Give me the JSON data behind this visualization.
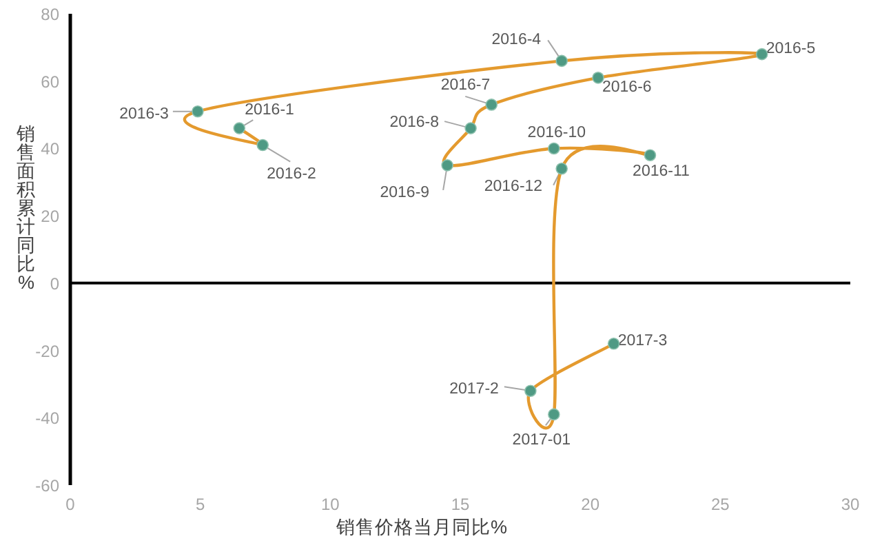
{
  "chart_data": {
    "type": "line",
    "xlabel": "销售价格当月同比%",
    "ylabel": "销售面积累计同比%",
    "xlim": [
      0,
      30
    ],
    "xticks": [
      0,
      5,
      10,
      15,
      20,
      25,
      30
    ],
    "ylim": [
      -60,
      80
    ],
    "yticks": [
      -60,
      -40,
      -20,
      0,
      20,
      40,
      60,
      80
    ],
    "marker": "circle",
    "line_style": "solid",
    "series": [
      {
        "color": "#e49a2e",
        "colors": [
          "#4f9a84",
          "#4f9a84",
          "#4f9a84",
          "#4f9a84",
          "#4f9a84",
          "#4f9a84",
          "#4f9a84",
          "#4f9a84",
          "#4f9a84",
          "#4f9a84",
          "#4f9a84",
          "#4f9a84",
          "#4f9a84",
          "#4f9a84",
          "#4f9a84"
        ],
        "x": [
          6.5,
          7.4,
          4.9,
          18.9,
          26.6,
          20.3,
          16.2,
          15.4,
          14.5,
          18.6,
          22.3,
          18.9,
          18.6,
          17.7,
          20.9
        ],
        "values": [
          46,
          41,
          51,
          66,
          68,
          61,
          53,
          46,
          35,
          40,
          38,
          34,
          -39,
          -32,
          -18
        ]
      }
    ],
    "annotations": [
      {
        "text": "2016-1",
        "x": 6.5,
        "y": 46
      },
      {
        "text": "2016-2",
        "x": 7.4,
        "y": 41
      },
      {
        "text": "2016-3",
        "x": 4.9,
        "y": 51
      },
      {
        "text": "2016-4",
        "x": 18.9,
        "y": 66
      },
      {
        "text": "2016-5",
        "x": 26.6,
        "y": 68
      },
      {
        "text": "2016-6",
        "x": 20.3,
        "y": 61
      },
      {
        "text": "2016-7",
        "x": 16.2,
        "y": 53
      },
      {
        "text": "2016-8",
        "x": 15.4,
        "y": 46
      },
      {
        "text": "2016-9",
        "x": 14.5,
        "y": 35
      },
      {
        "text": "2016-10",
        "x": 18.6,
        "y": 40
      },
      {
        "text": "2016-11",
        "x": 22.3,
        "y": 38
      },
      {
        "text": "2016-12",
        "x": 18.9,
        "y": 34
      },
      {
        "text": "2017-01",
        "x": 18.6,
        "y": -39
      },
      {
        "text": "2017-2",
        "x": 17.7,
        "y": -32
      },
      {
        "text": "2017-3",
        "x": 20.9,
        "y": -18
      }
    ]
  }
}
